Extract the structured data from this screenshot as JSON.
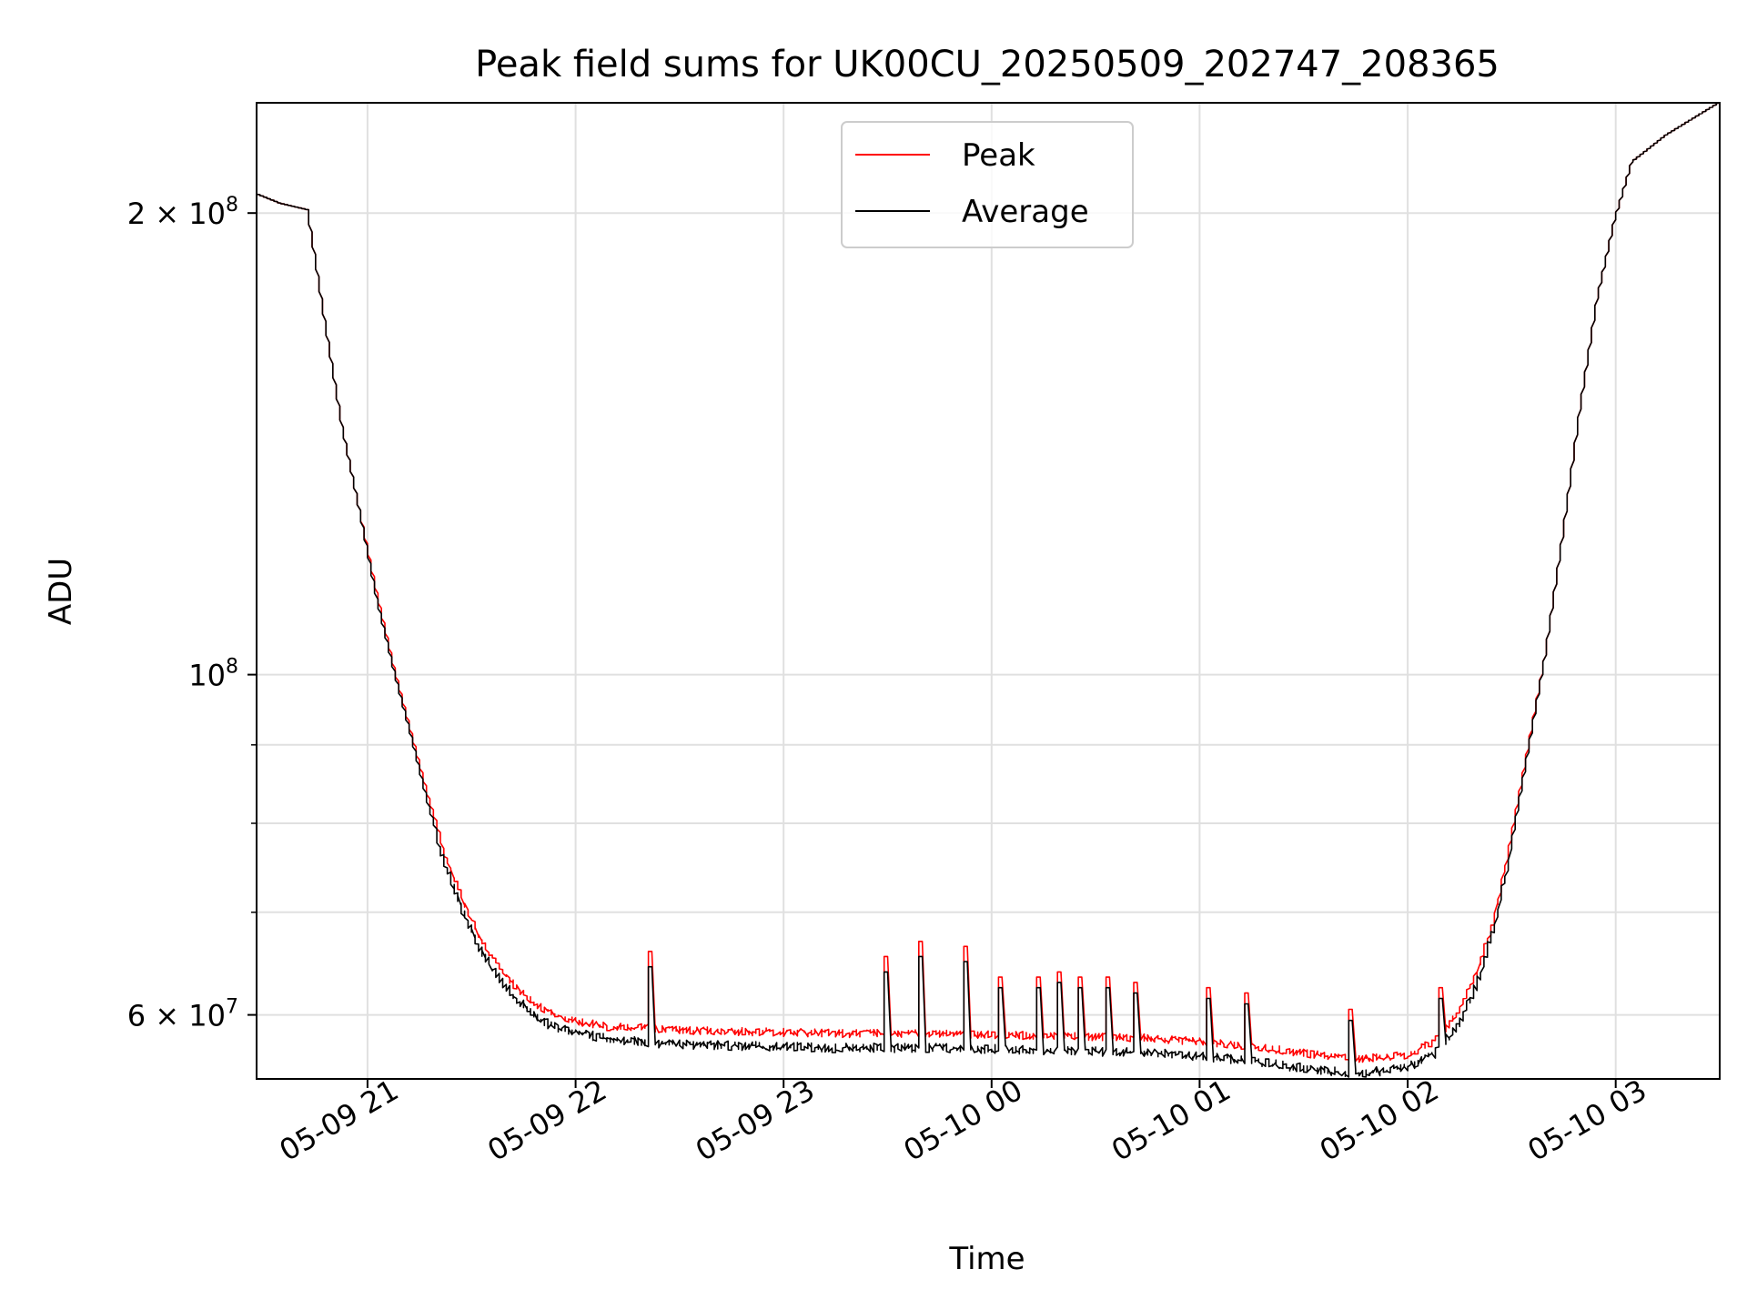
{
  "chart_data": {
    "type": "line",
    "title": "Peak field sums for UK00CU_20250509_202747_208365",
    "xlabel": "Time",
    "ylabel": "ADU",
    "y_scale": "log",
    "ylim": [
      54500000,
      236000000
    ],
    "xlim": [
      "2025-05-09 20:28",
      "2025-05-10 03:30"
    ],
    "x_ticks": [
      {
        "x": "2025-05-09 21:00",
        "label": "05-09 21"
      },
      {
        "x": "2025-05-09 22:00",
        "label": "05-09 22"
      },
      {
        "x": "2025-05-09 23:00",
        "label": "05-09 23"
      },
      {
        "x": "2025-05-10 00:00",
        "label": "05-10 00"
      },
      {
        "x": "2025-05-10 01:00",
        "label": "05-10 01"
      },
      {
        "x": "2025-05-10 02:00",
        "label": "05-10 02"
      },
      {
        "x": "2025-05-10 03:00",
        "label": "05-10 03"
      }
    ],
    "y_major_ticks": [
      {
        "y": 60000000,
        "base": "6 × 10",
        "exp": "7"
      },
      {
        "y": 100000000,
        "base": "10",
        "exp": "8"
      },
      {
        "y": 200000000,
        "base": "2 × 10",
        "exp": "8"
      }
    ],
    "y_minor_ticks": [
      70000000,
      80000000,
      90000000
    ],
    "grid": true,
    "legend": "upper center",
    "series": [
      {
        "name": "Peak",
        "color": "#ff0000",
        "points": [
          [
            "2025-05-09 20:28",
            206000000
          ],
          [
            "2025-05-09 20:35",
            203000000
          ],
          [
            "2025-05-09 20:43",
            201000000
          ],
          [
            "2025-05-09 20:48",
            170000000
          ],
          [
            "2025-05-09 20:53",
            145000000
          ],
          [
            "2025-05-09 20:58",
            128000000
          ],
          [
            "2025-05-09 21:03",
            113000000
          ],
          [
            "2025-05-09 21:08",
            101000000
          ],
          [
            "2025-05-09 21:13",
            91500000
          ],
          [
            "2025-05-09 21:18",
            83000000
          ],
          [
            "2025-05-09 21:23",
            76500000
          ],
          [
            "2025-05-09 21:28",
            71500000
          ],
          [
            "2025-05-09 21:33",
            67500000
          ],
          [
            "2025-05-09 21:38",
            65000000
          ],
          [
            "2025-05-09 21:43",
            63000000
          ],
          [
            "2025-05-09 21:48",
            61500000
          ],
          [
            "2025-05-09 21:53",
            60500000
          ],
          [
            "2025-05-09 22:00",
            59800000
          ],
          [
            "2025-05-09 22:10",
            59300000
          ],
          [
            "2025-05-09 22:20",
            59200000
          ],
          [
            "2025-05-09 22:30",
            59000000
          ],
          [
            "2025-05-09 22:45",
            58900000
          ],
          [
            "2025-05-09 23:00",
            58800000
          ],
          [
            "2025-05-09 23:15",
            58700000
          ],
          [
            "2025-05-09 23:30",
            58700000
          ],
          [
            "2025-05-09 23:45",
            58700000
          ],
          [
            "2025-05-10 00:00",
            58600000
          ],
          [
            "2025-05-10 00:15",
            58500000
          ],
          [
            "2025-05-10 00:30",
            58400000
          ],
          [
            "2025-05-10 00:45",
            58300000
          ],
          [
            "2025-05-10 01:00",
            58000000
          ],
          [
            "2025-05-10 01:15",
            57600000
          ],
          [
            "2025-05-10 01:30",
            57000000
          ],
          [
            "2025-05-10 01:45",
            56500000
          ],
          [
            "2025-05-10 02:00",
            56800000
          ],
          [
            "2025-05-10 02:08",
            58000000
          ],
          [
            "2025-05-10 02:15",
            60500000
          ],
          [
            "2025-05-10 02:20",
            64000000
          ],
          [
            "2025-05-10 02:25",
            69500000
          ],
          [
            "2025-05-10 02:30",
            78000000
          ],
          [
            "2025-05-10 02:35",
            89500000
          ],
          [
            "2025-05-10 02:40",
            103000000
          ],
          [
            "2025-05-10 02:45",
            123000000
          ],
          [
            "2025-05-10 02:50",
            149000000
          ],
          [
            "2025-05-10 02:55",
            176000000
          ],
          [
            "2025-05-10 03:00",
            198000000
          ],
          [
            "2025-05-10 03:05",
            216000000
          ],
          [
            "2025-05-10 03:15",
            225000000
          ],
          [
            "2025-05-10 03:30",
            236000000
          ]
        ]
      },
      {
        "name": "Average",
        "color": "#000000",
        "points": [
          [
            "2025-05-09 20:28",
            206000000
          ],
          [
            "2025-05-09 20:35",
            203000000
          ],
          [
            "2025-05-09 20:43",
            201000000
          ],
          [
            "2025-05-09 20:48",
            170000000
          ],
          [
            "2025-05-09 20:53",
            145000000
          ],
          [
            "2025-05-09 20:58",
            128000000
          ],
          [
            "2025-05-09 21:03",
            112000000
          ],
          [
            "2025-05-09 21:08",
            100500000
          ],
          [
            "2025-05-09 21:13",
            91000000
          ],
          [
            "2025-05-09 21:18",
            82000000
          ],
          [
            "2025-05-09 21:23",
            75500000
          ],
          [
            "2025-05-09 21:28",
            70500000
          ],
          [
            "2025-05-09 21:33",
            66500000
          ],
          [
            "2025-05-09 21:38",
            64000000
          ],
          [
            "2025-05-09 21:43",
            62000000
          ],
          [
            "2025-05-09 21:48",
            60500000
          ],
          [
            "2025-05-09 21:53",
            59500000
          ],
          [
            "2025-05-09 22:00",
            58800000
          ],
          [
            "2025-05-09 22:10",
            58300000
          ],
          [
            "2025-05-09 22:20",
            58000000
          ],
          [
            "2025-05-09 22:30",
            57800000
          ],
          [
            "2025-05-09 22:45",
            57700000
          ],
          [
            "2025-05-09 23:00",
            57600000
          ],
          [
            "2025-05-09 23:15",
            57500000
          ],
          [
            "2025-05-09 23:30",
            57500000
          ],
          [
            "2025-05-09 23:45",
            57500000
          ],
          [
            "2025-05-10 00:00",
            57400000
          ],
          [
            "2025-05-10 00:15",
            57300000
          ],
          [
            "2025-05-10 00:30",
            57200000
          ],
          [
            "2025-05-10 00:45",
            57100000
          ],
          [
            "2025-05-10 01:00",
            56800000
          ],
          [
            "2025-05-10 01:15",
            56400000
          ],
          [
            "2025-05-10 01:30",
            55800000
          ],
          [
            "2025-05-10 01:45",
            55300000
          ],
          [
            "2025-05-10 02:00",
            55800000
          ],
          [
            "2025-05-10 02:08",
            57000000
          ],
          [
            "2025-05-10 02:15",
            59500000
          ],
          [
            "2025-05-10 02:20",
            63000000
          ],
          [
            "2025-05-10 02:25",
            68500000
          ],
          [
            "2025-05-10 02:30",
            77000000
          ],
          [
            "2025-05-10 02:35",
            89000000
          ],
          [
            "2025-05-10 02:40",
            103000000
          ],
          [
            "2025-05-10 02:45",
            123000000
          ],
          [
            "2025-05-10 02:50",
            149000000
          ],
          [
            "2025-05-10 02:55",
            176000000
          ],
          [
            "2025-05-10 03:00",
            198000000
          ],
          [
            "2025-05-10 03:05",
            216000000
          ],
          [
            "2025-05-10 03:15",
            225000000
          ],
          [
            "2025-05-10 03:30",
            236000000
          ]
        ]
      }
    ],
    "spikes": [
      {
        "x": "2025-05-09 22:22",
        "peak": 66000000,
        "average": 64500000
      },
      {
        "x": "2025-05-09 23:30",
        "peak": 65500000,
        "average": 64000000
      },
      {
        "x": "2025-05-09 23:40",
        "peak": 67000000,
        "average": 65500000
      },
      {
        "x": "2025-05-09 23:53",
        "peak": 66500000,
        "average": 65000000
      },
      {
        "x": "2025-05-10 00:03",
        "peak": 63500000,
        "average": 62500000
      },
      {
        "x": "2025-05-10 00:14",
        "peak": 63500000,
        "average": 62500000
      },
      {
        "x": "2025-05-10 00:20",
        "peak": 64000000,
        "average": 63000000
      },
      {
        "x": "2025-05-10 00:26",
        "peak": 63500000,
        "average": 62500000
      },
      {
        "x": "2025-05-10 00:34",
        "peak": 63500000,
        "average": 62500000
      },
      {
        "x": "2025-05-10 00:42",
        "peak": 63000000,
        "average": 62000000
      },
      {
        "x": "2025-05-10 01:03",
        "peak": 62500000,
        "average": 61500000
      },
      {
        "x": "2025-05-10 01:14",
        "peak": 62000000,
        "average": 61000000
      },
      {
        "x": "2025-05-10 01:44",
        "peak": 60500000,
        "average": 59500000
      },
      {
        "x": "2025-05-10 02:10",
        "peak": 62500000,
        "average": 61500000
      }
    ]
  }
}
